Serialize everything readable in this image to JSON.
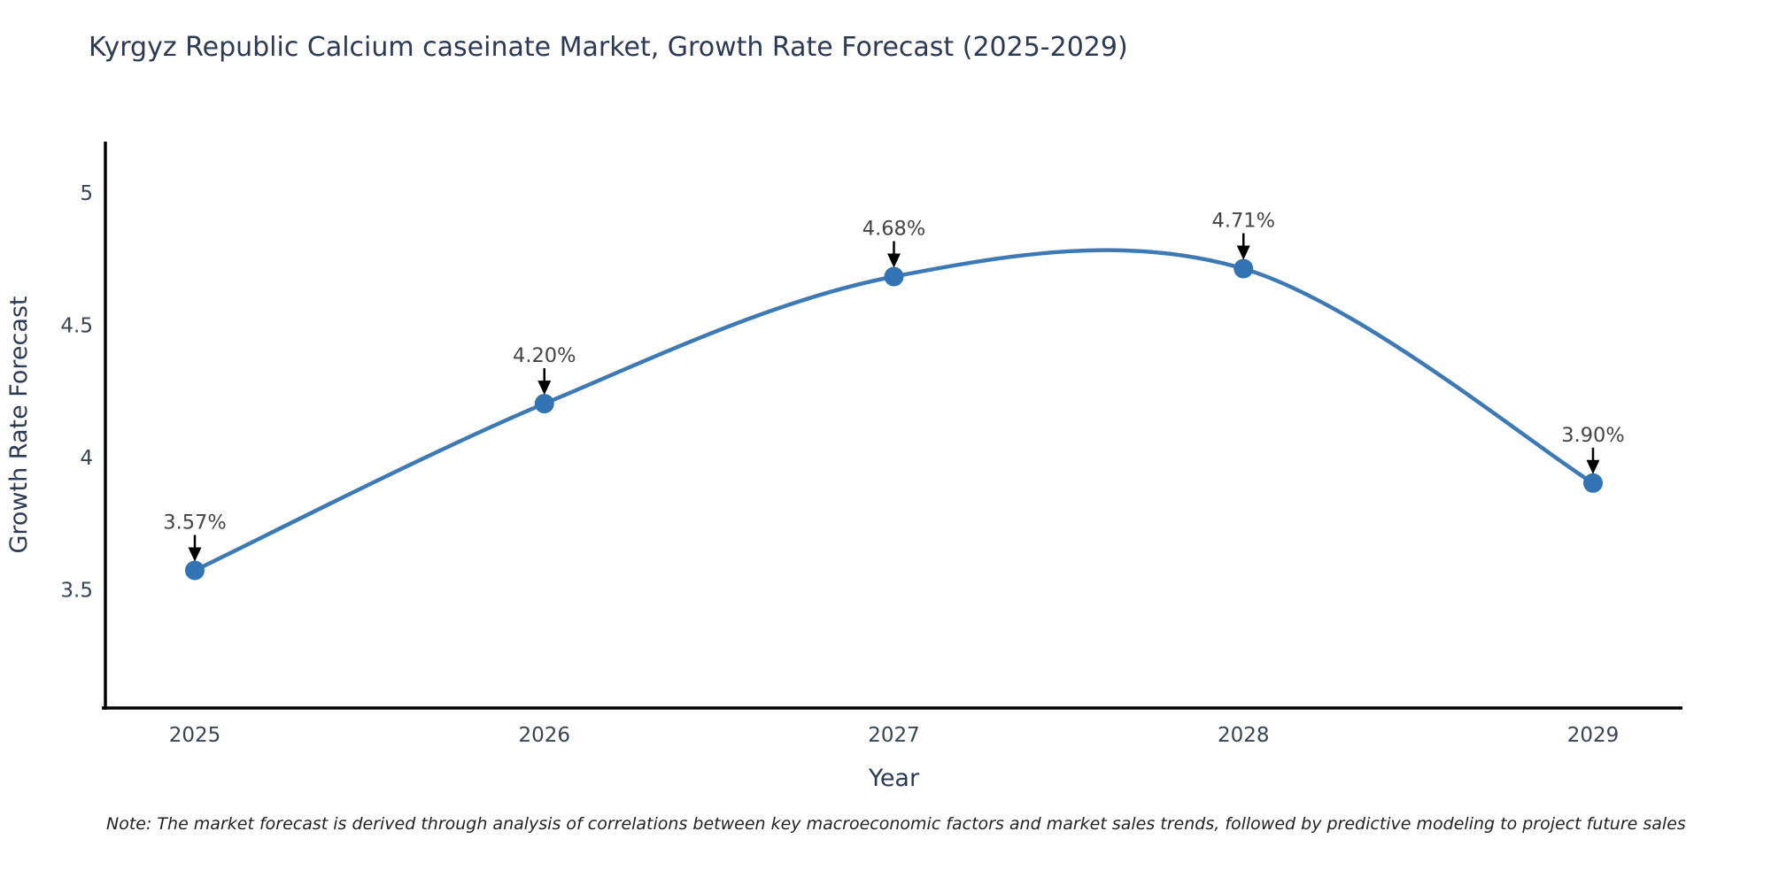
{
  "title": "Kyrgyz Republic Calcium caseinate Market, Growth Rate Forecast (2025-2029)",
  "note": "Note: The market forecast is derived through analysis of correlations between key macroeconomic factors and market sales trends, followed by predictive modeling to project future sales",
  "chart_data": {
    "type": "line",
    "title": "Kyrgyz Republic Calcium caseinate Market, Growth Rate Forecast (2025-2029)",
    "x": [
      2025,
      2026,
      2027,
      2028,
      2029
    ],
    "values": [
      3.57,
      4.2,
      4.68,
      4.71,
      3.9
    ],
    "point_labels": [
      "3.57%",
      "4.20%",
      "4.68%",
      "4.71%",
      "3.90%"
    ],
    "xlabel": "Year",
    "ylabel": "Growth Rate Forecast",
    "xtick_labels": [
      "2025",
      "2026",
      "2027",
      "2028",
      "2029"
    ],
    "yticks": [
      5,
      4.5,
      4,
      3.5
    ],
    "ytick_labels": [
      "5",
      "4.5",
      "4",
      "3.5"
    ],
    "ylim": [
      3.05,
      5.19
    ],
    "line_shape": "spline",
    "grid": false,
    "legend": false,
    "annotations_have_arrows": true,
    "colors": {
      "line": "#3d7ab5",
      "marker": "#3273b3",
      "annotation_text": "#444444",
      "annotation_arrow": "#000000",
      "axis_line": "#000000",
      "title_text": "#2c3a55",
      "tick_text": "#3b4455"
    }
  }
}
